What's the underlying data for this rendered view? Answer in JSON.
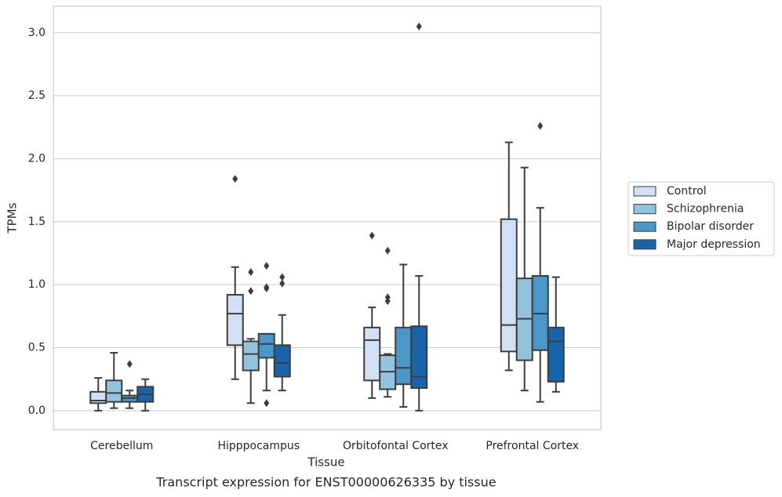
{
  "chart_data": {
    "type": "box",
    "title": "Transcript expression for ENST00000626335 by tissue",
    "xlabel": "Tissue",
    "ylabel": "TPMs",
    "categories": [
      "Cerebellum",
      "Hipppocampus",
      "Orbitofontal Cortex",
      "Prefrontal Cortex"
    ],
    "ylim": [
      -0.15,
      3.21
    ],
    "yticks": [
      {
        "value": 0,
        "label": "0.0"
      },
      0.5,
      {
        "value": 1,
        "label": "1.0"
      },
      1.5,
      {
        "value": 2,
        "label": "2.0"
      },
      2.5,
      {
        "value": 3,
        "label": "3.0"
      }
    ],
    "grid": true,
    "legend": "right",
    "series": [
      {
        "name": "Control",
        "color": "#cfe1f2",
        "values": [
          {
            "whislo": 0.0,
            "q1": 0.06,
            "med": 0.08,
            "q3": 0.15,
            "whishi": 0.26,
            "fliers": []
          },
          {
            "whislo": 0.25,
            "q1": 0.52,
            "med": 0.77,
            "q3": 0.92,
            "whishi": 1.14,
            "fliers": [
              1.84
            ]
          },
          {
            "whislo": 0.1,
            "q1": 0.24,
            "med": 0.56,
            "q3": 0.66,
            "whishi": 0.82,
            "fliers": [
              1.39
            ]
          },
          {
            "whislo": 0.32,
            "q1": 0.47,
            "med": 0.68,
            "q3": 1.52,
            "whishi": 2.13,
            "fliers": []
          }
        ]
      },
      {
        "name": "Schizophrenia",
        "color": "#93c4de",
        "values": [
          {
            "whislo": 0.02,
            "q1": 0.07,
            "med": 0.14,
            "q3": 0.24,
            "whishi": 0.46,
            "fliers": []
          },
          {
            "whislo": 0.06,
            "q1": 0.32,
            "med": 0.45,
            "q3": 0.55,
            "whishi": 0.57,
            "fliers": [
              1.1,
              0.95
            ]
          },
          {
            "whislo": 0.11,
            "q1": 0.17,
            "med": 0.31,
            "q3": 0.44,
            "whishi": 0.45,
            "fliers": [
              1.27,
              0.9,
              0.87
            ]
          },
          {
            "whislo": 0.16,
            "q1": 0.4,
            "med": 0.73,
            "q3": 1.05,
            "whishi": 1.93,
            "fliers": []
          }
        ]
      },
      {
        "name": "Bipolar disorder",
        "color": "#4a98c9",
        "values": [
          {
            "whislo": 0.02,
            "q1": 0.07,
            "med": 0.1,
            "q3": 0.12,
            "whishi": 0.16,
            "fliers": [
              0.37
            ]
          },
          {
            "whislo": 0.16,
            "q1": 0.42,
            "med": 0.53,
            "q3": 0.61,
            "whishi": 0.61,
            "fliers": [
              1.15,
              0.98,
              0.97,
              0.06
            ]
          },
          {
            "whislo": 0.03,
            "q1": 0.21,
            "med": 0.34,
            "q3": 0.66,
            "whishi": 1.16,
            "fliers": []
          },
          {
            "whislo": 0.07,
            "q1": 0.48,
            "med": 0.77,
            "q3": 1.07,
            "whishi": 1.61,
            "fliers": [
              2.26
            ]
          }
        ]
      },
      {
        "name": "Major depression",
        "color": "#1764ab",
        "values": [
          {
            "whislo": 0.0,
            "q1": 0.07,
            "med": 0.13,
            "q3": 0.19,
            "whishi": 0.25,
            "fliers": []
          },
          {
            "whislo": 0.16,
            "q1": 0.27,
            "med": 0.38,
            "q3": 0.52,
            "whishi": 0.76,
            "fliers": [
              1.06,
              1.01
            ]
          },
          {
            "whislo": 0.0,
            "q1": 0.18,
            "med": 0.27,
            "q3": 0.67,
            "whishi": 1.07,
            "fliers": [
              3.05
            ]
          },
          {
            "whislo": 0.15,
            "q1": 0.23,
            "med": 0.55,
            "q3": 0.66,
            "whishi": 1.06,
            "fliers": []
          }
        ]
      }
    ]
  }
}
